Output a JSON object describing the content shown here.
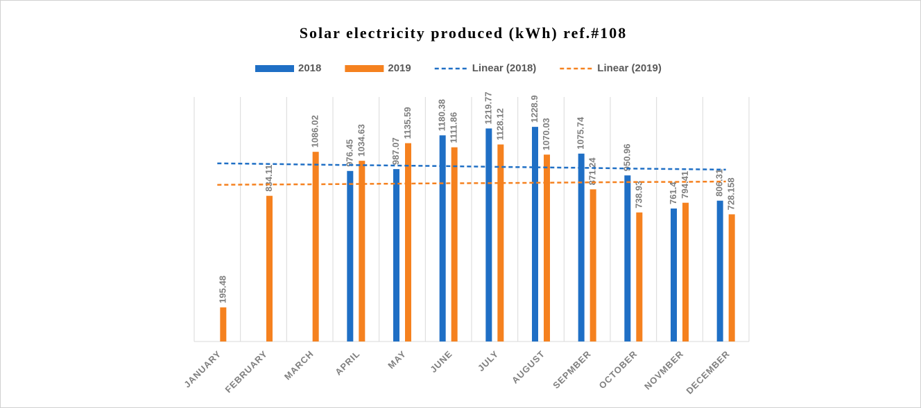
{
  "chart_data": {
    "type": "bar",
    "title": "Solar electricity produced (kWh) ref.#108",
    "categories": [
      "JANUARY",
      "FEBRUARY",
      "MARCH",
      "APRIL",
      "MAY",
      "JUNE",
      "JULY",
      "AUGUST",
      "SEPMBER",
      "OCTOBER",
      "NOVMBER",
      "DECEMBER"
    ],
    "series": [
      {
        "name": "2018",
        "color": "#1f6fc5",
        "values": [
          null,
          null,
          null,
          976.45,
          987.07,
          1180.38,
          1219.77,
          1228.9,
          1075.74,
          950.96,
          761.4,
          806.31
        ]
      },
      {
        "name": "2019",
        "color": "#f5811f",
        "values": [
          195.48,
          834.11,
          1086.02,
          1034.63,
          1135.59,
          1111.86,
          1128.12,
          1070.03,
          871.24,
          738.93,
          794.41,
          728.158
        ]
      },
      {
        "name": "Linear (2018)",
        "color": "#1f6fc5",
        "type": "line",
        "dashed": true,
        "values": [
          1020,
          1017,
          1013,
          1010,
          1007,
          1004,
          1000,
          997,
          994,
          990,
          987,
          984
        ]
      },
      {
        "name": "Linear (2019)",
        "color": "#f5811f",
        "type": "line",
        "dashed": true,
        "values": [
          897,
          899,
          900,
          902,
          904,
          906,
          907,
          909,
          911,
          913,
          914,
          916
        ]
      }
    ],
    "ylim": [
      0,
      1400
    ],
    "grid": true,
    "legend": "top"
  }
}
